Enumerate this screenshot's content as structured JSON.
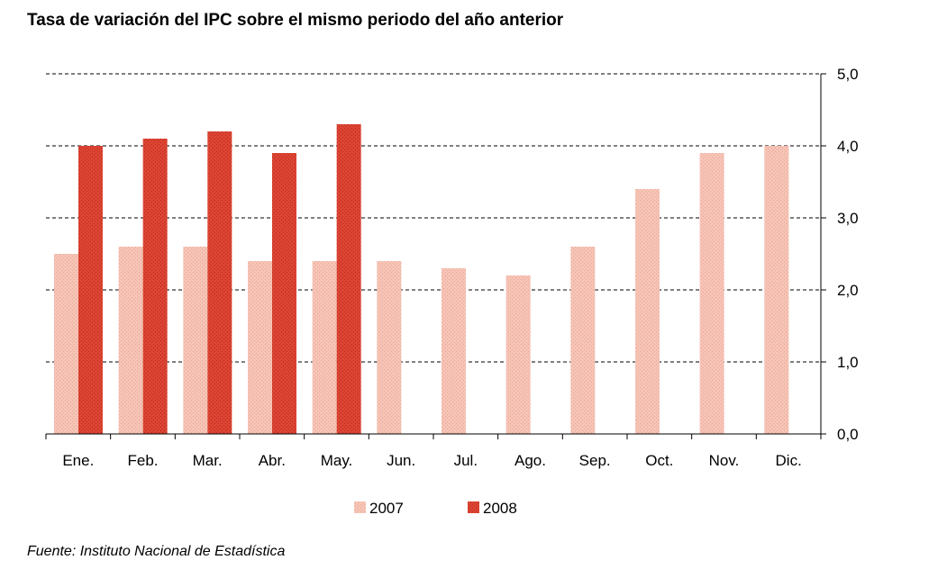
{
  "chart_data": {
    "type": "bar",
    "title": "Tasa de variación del IPC sobre el mismo periodo del año anterior",
    "source": "Fuente: Instituto Nacional de Estadística",
    "categories": [
      "Ene.",
      "Feb.",
      "Mar.",
      "Abr.",
      "May.",
      "Jun.",
      "Jul.",
      "Ago.",
      "Sep.",
      "Oct.",
      "Nov.",
      "Dic."
    ],
    "series": [
      {
        "name": "2007",
        "color": "#f4b8a8",
        "values": [
          2.5,
          2.6,
          2.6,
          2.4,
          2.4,
          2.4,
          2.3,
          2.2,
          2.6,
          3.4,
          3.9,
          4.0
        ]
      },
      {
        "name": "2008",
        "color": "#d63a2a",
        "values": [
          4.0,
          4.1,
          4.2,
          3.9,
          4.3,
          null,
          null,
          null,
          null,
          null,
          null,
          null
        ]
      }
    ],
    "ylim": [
      0,
      5
    ],
    "yticks": [
      "0,0",
      "1,0",
      "2,0",
      "3,0",
      "4,0",
      "5,0"
    ],
    "y_axis_side": "right",
    "grid": true,
    "legend_position": "bottom"
  }
}
